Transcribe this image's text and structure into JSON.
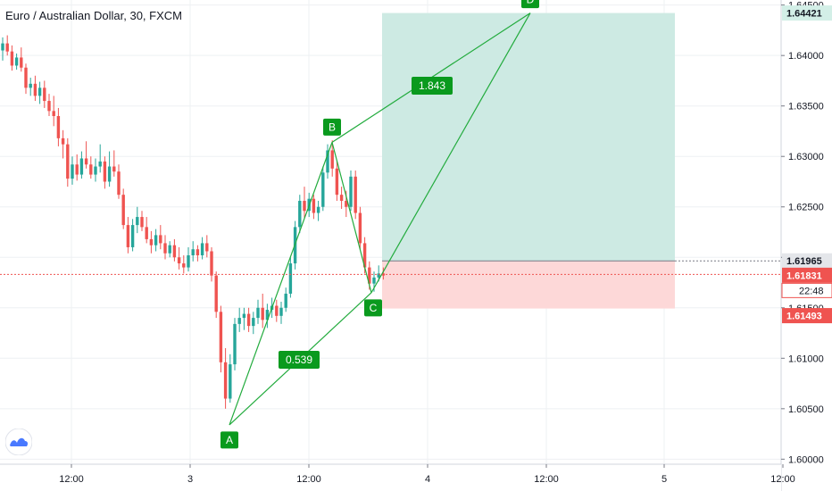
{
  "header": {
    "title": "Euro / Australian Dollar, 30, FXCM"
  },
  "colors": {
    "up": "#26a69a",
    "down": "#ef5350",
    "pattern": "#22ab3d",
    "badge": "#0a9a1e",
    "target_zone": "#cdeae3",
    "stop_zone": "#fdd8d8",
    "grid": "#eef0f3",
    "axis_text": "#131722"
  },
  "chart_data": {
    "type": "candlestick",
    "timeframe": "30",
    "ylim": [
      1.5995,
      1.6455
    ],
    "price_ticks": [
      "1.60000",
      "1.60500",
      "1.61000",
      "1.61500",
      "1.62000",
      "1.62500",
      "1.63000",
      "1.63500",
      "1.64000",
      "1.64500"
    ],
    "time_labels": [
      "12:00",
      "3",
      "12:00",
      "4",
      "12:00",
      "5",
      "12:00"
    ],
    "candles_ohlc": [
      [
        1.6405,
        1.6418,
        1.6395,
        1.6412
      ],
      [
        1.6412,
        1.642,
        1.64,
        1.6404
      ],
      [
        1.6404,
        1.641,
        1.6385,
        1.639
      ],
      [
        1.639,
        1.6402,
        1.6386,
        1.6398
      ],
      [
        1.6398,
        1.6408,
        1.6384,
        1.6388
      ],
      [
        1.6388,
        1.6392,
        1.6362,
        1.6368
      ],
      [
        1.6368,
        1.6378,
        1.636,
        1.6372
      ],
      [
        1.6372,
        1.638,
        1.6355,
        1.636
      ],
      [
        1.636,
        1.6374,
        1.6352,
        1.6368
      ],
      [
        1.6368,
        1.6375,
        1.6348,
        1.6355
      ],
      [
        1.6355,
        1.6362,
        1.634,
        1.6345
      ],
      [
        1.6345,
        1.636,
        1.633,
        1.634
      ],
      [
        1.634,
        1.6348,
        1.631,
        1.6318
      ],
      [
        1.6318,
        1.6326,
        1.6298,
        1.6312
      ],
      [
        1.6312,
        1.6318,
        1.627,
        1.6278
      ],
      [
        1.6278,
        1.63,
        1.6272,
        1.6292
      ],
      [
        1.6292,
        1.6302,
        1.6276,
        1.6282
      ],
      [
        1.6282,
        1.6305,
        1.6278,
        1.6298
      ],
      [
        1.6298,
        1.6315,
        1.6288,
        1.6292
      ],
      [
        1.6292,
        1.63,
        1.6278,
        1.6282
      ],
      [
        1.6282,
        1.6298,
        1.6275,
        1.629
      ],
      [
        1.629,
        1.6312,
        1.6284,
        1.6295
      ],
      [
        1.6295,
        1.63,
        1.6268,
        1.6275
      ],
      [
        1.6275,
        1.6305,
        1.627,
        1.629
      ],
      [
        1.629,
        1.6306,
        1.628,
        1.6285
      ],
      [
        1.6285,
        1.6292,
        1.6258,
        1.6262
      ],
      [
        1.6262,
        1.6268,
        1.6228,
        1.6232
      ],
      [
        1.6232,
        1.624,
        1.6204,
        1.621
      ],
      [
        1.621,
        1.6238,
        1.6206,
        1.6232
      ],
      [
        1.6232,
        1.625,
        1.6224,
        1.624
      ],
      [
        1.624,
        1.6246,
        1.6226,
        1.623
      ],
      [
        1.623,
        1.624,
        1.6214,
        1.6218
      ],
      [
        1.6218,
        1.6226,
        1.6204,
        1.6212
      ],
      [
        1.6212,
        1.6228,
        1.6206,
        1.6222
      ],
      [
        1.6222,
        1.6232,
        1.6208,
        1.6214
      ],
      [
        1.6214,
        1.6222,
        1.6198,
        1.6204
      ],
      [
        1.6204,
        1.6216,
        1.62,
        1.6212
      ],
      [
        1.6212,
        1.6218,
        1.6196,
        1.62
      ],
      [
        1.62,
        1.621,
        1.6188,
        1.6194
      ],
      [
        1.6194,
        1.6202,
        1.6184,
        1.619
      ],
      [
        1.619,
        1.621,
        1.6186,
        1.6202
      ],
      [
        1.6202,
        1.6216,
        1.6196,
        1.6208
      ],
      [
        1.6208,
        1.6212,
        1.6196,
        1.6202
      ],
      [
        1.6202,
        1.622,
        1.6198,
        1.6214
      ],
      [
        1.6214,
        1.6222,
        1.62,
        1.6206
      ],
      [
        1.6206,
        1.621,
        1.6176,
        1.6182
      ],
      [
        1.6182,
        1.6186,
        1.614,
        1.6146
      ],
      [
        1.6146,
        1.6152,
        1.6086,
        1.6096
      ],
      [
        1.6096,
        1.611,
        1.605,
        1.606
      ],
      [
        1.606,
        1.6104,
        1.6056,
        1.6094
      ],
      [
        1.6094,
        1.614,
        1.6088,
        1.6134
      ],
      [
        1.6134,
        1.615,
        1.6126,
        1.614
      ],
      [
        1.614,
        1.615,
        1.6128,
        1.6144
      ],
      [
        1.6144,
        1.615,
        1.6126,
        1.6132
      ],
      [
        1.6132,
        1.6146,
        1.6124,
        1.614
      ],
      [
        1.614,
        1.6158,
        1.6134,
        1.615
      ],
      [
        1.615,
        1.6164,
        1.613,
        1.6138
      ],
      [
        1.6138,
        1.6154,
        1.613,
        1.6148
      ],
      [
        1.6148,
        1.616,
        1.614,
        1.6152
      ],
      [
        1.6152,
        1.6158,
        1.6136,
        1.6142
      ],
      [
        1.6142,
        1.6156,
        1.6134,
        1.615
      ],
      [
        1.615,
        1.617,
        1.6146,
        1.6164
      ],
      [
        1.6164,
        1.62,
        1.616,
        1.6194
      ],
      [
        1.6194,
        1.6236,
        1.6188,
        1.623
      ],
      [
        1.623,
        1.6262,
        1.6224,
        1.6256
      ],
      [
        1.6256,
        1.627,
        1.6238,
        1.6246
      ],
      [
        1.6246,
        1.6264,
        1.624,
        1.6258
      ],
      [
        1.6258,
        1.6262,
        1.6238,
        1.6244
      ],
      [
        1.6244,
        1.6256,
        1.6236,
        1.625
      ],
      [
        1.625,
        1.629,
        1.6246,
        1.6284
      ],
      [
        1.6284,
        1.6312,
        1.6278,
        1.6306
      ],
      [
        1.6306,
        1.6316,
        1.628,
        1.6288
      ],
      [
        1.6288,
        1.6296,
        1.6256,
        1.6262
      ],
      [
        1.6262,
        1.627,
        1.6248,
        1.6256
      ],
      [
        1.6256,
        1.6266,
        1.624,
        1.625
      ],
      [
        1.625,
        1.6286,
        1.6246,
        1.628
      ],
      [
        1.628,
        1.6286,
        1.6238,
        1.6244
      ],
      [
        1.6244,
        1.625,
        1.6208,
        1.6214
      ],
      [
        1.6214,
        1.622,
        1.6184,
        1.619
      ],
      [
        1.619,
        1.6196,
        1.6168,
        1.6174
      ],
      [
        1.6174,
        1.6186,
        1.6166,
        1.618
      ],
      [
        1.618,
        1.6192,
        1.6176,
        1.6184
      ],
      [
        1.6184,
        1.619,
        1.6178,
        1.6182
      ]
    ],
    "harmonic_pattern": {
      "points": [
        {
          "label": "A",
          "price": 1.6034
        },
        {
          "label": "B",
          "price": 1.6314
        },
        {
          "label": "C",
          "price": 1.6165
        },
        {
          "label": "D",
          "price": 1.64421
        }
      ],
      "ratios": [
        {
          "label": "1.843",
          "between": "B-D"
        },
        {
          "label": "0.539",
          "between": "A-C"
        }
      ]
    },
    "position": {
      "entry": 1.61965,
      "target": 1.64421,
      "stop": 1.61493,
      "target_label": "1.64421",
      "entry_label": "1.61965",
      "stop_label": "1.61493"
    },
    "last_price": {
      "value": 1.61831,
      "label": "1.61831",
      "countdown": "22:48"
    }
  }
}
